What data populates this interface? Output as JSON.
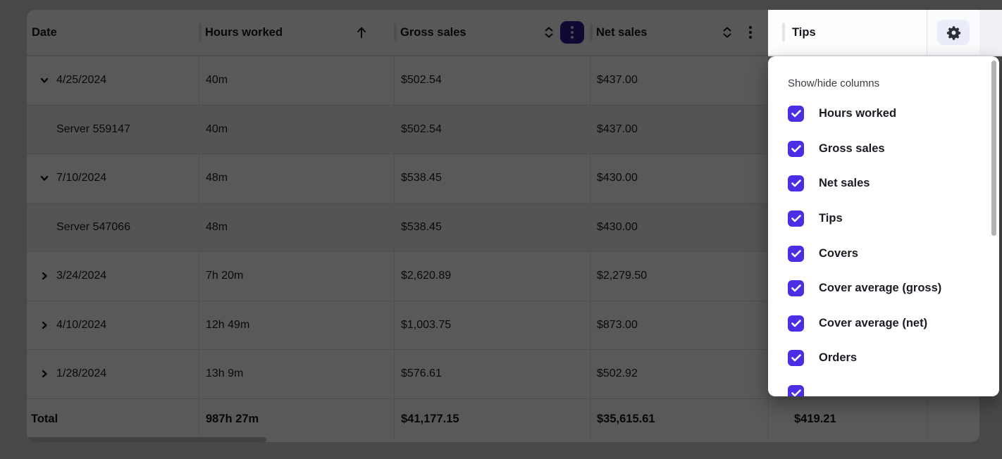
{
  "table": {
    "columns": [
      {
        "label": "Date"
      },
      {
        "label": "Hours worked",
        "sort": "asc"
      },
      {
        "label": "Gross sales",
        "sort": "none",
        "menu_open": true
      },
      {
        "label": "Net sales",
        "sort": "none",
        "menu_open": false
      },
      {
        "label": "Tips"
      }
    ],
    "rows": [
      {
        "type": "group",
        "expanded": true,
        "date": "4/25/2024",
        "hours": "40m",
        "gross": "$502.54",
        "net": "$437.00"
      },
      {
        "type": "child",
        "date": "Server 559147",
        "hours": "40m",
        "gross": "$502.54",
        "net": "$437.00"
      },
      {
        "type": "group",
        "expanded": true,
        "date": "7/10/2024",
        "hours": "48m",
        "gross": "$538.45",
        "net": "$430.00"
      },
      {
        "type": "child",
        "date": "Server 547066",
        "hours": "48m",
        "gross": "$538.45",
        "net": "$430.00"
      },
      {
        "type": "group",
        "expanded": false,
        "date": "3/24/2024",
        "hours": "7h 20m",
        "gross": "$2,620.89",
        "net": "$2,279.50"
      },
      {
        "type": "group",
        "expanded": false,
        "date": "4/10/2024",
        "hours": "12h 49m",
        "gross": "$1,003.75",
        "net": "$873.00"
      },
      {
        "type": "group",
        "expanded": false,
        "date": "1/28/2024",
        "hours": "13h 9m",
        "gross": "$576.61",
        "net": "$502.92"
      }
    ],
    "total": {
      "label": "Total",
      "hours": "987h 27m",
      "gross": "$41,177.15",
      "net": "$35,615.61",
      "tips": "$419.21"
    }
  },
  "popover": {
    "title": "Show/hide columns",
    "items": [
      {
        "label": "Hours worked",
        "checked": true
      },
      {
        "label": "Gross sales",
        "checked": true
      },
      {
        "label": "Net sales",
        "checked": true
      },
      {
        "label": "Tips",
        "checked": true
      },
      {
        "label": "Covers",
        "checked": true
      },
      {
        "label": "Cover average (gross)",
        "checked": true
      },
      {
        "label": "Cover average (net)",
        "checked": true
      },
      {
        "label": "Orders",
        "checked": true
      },
      {
        "label": "",
        "checked": true,
        "partially_visible": true
      }
    ]
  },
  "icons": {
    "sort_ascending": "arrow-up",
    "sort_unsorted": "chevrons-up-down",
    "column_menu": "kebab-vertical-dots",
    "settings": "gear",
    "expanded": "chevron-down",
    "collapsed": "chevron-right",
    "checked": "checkmark"
  },
  "colors": {
    "accent_indigo": "#4b2de4",
    "active_menu_button": "#2c1c92",
    "gear_button_bg": "#e9edfa",
    "overlay": "rgba(0,0,0,0.65)",
    "row_bg": "#ffffff",
    "child_row_bg": "#f1f1f4",
    "border": "#e3e3e6",
    "text": "#1a1c21"
  }
}
